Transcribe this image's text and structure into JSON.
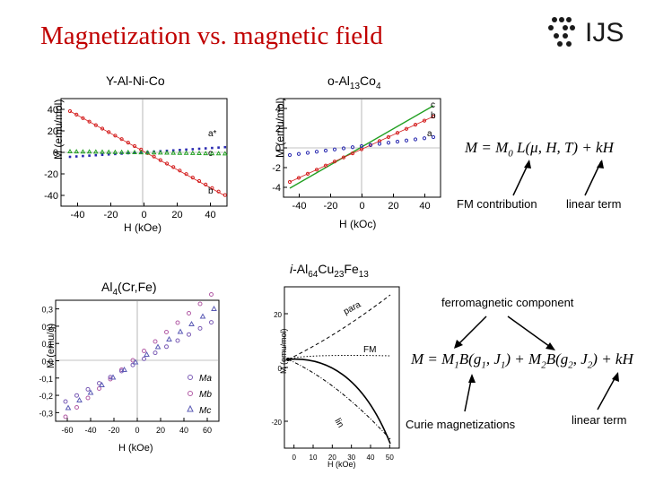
{
  "title": "Magnetization vs. magnetic field",
  "logo": {
    "text": "IJS"
  },
  "panels": {
    "ya": {
      "label": "Y-Al-Ni-Co",
      "ylabel": "M (emu/mol)",
      "xlabel": "H (kOe)",
      "xticks": [
        "-40",
        "-20",
        "0",
        "20",
        "40"
      ],
      "yticks": [
        "40",
        "20",
        "0",
        "-20",
        "-40"
      ],
      "curves": [
        "a*",
        "c",
        "b"
      ]
    },
    "oal": {
      "label": "o-Al13Co4",
      "ylabel": "M (emu/mol)",
      "xlabel": "H (kOc)",
      "xticks": [
        "-40",
        "-20",
        "0",
        "20",
        "40"
      ],
      "yticks": [
        "4",
        "2",
        "0",
        "-2",
        "-4"
      ],
      "curves": [
        "c",
        "b",
        "a"
      ]
    },
    "al4": {
      "label": "Al4(Cr,Fe)",
      "ylabel": "M (emu/g)",
      "xlabel": "H (kOe)",
      "xticks": [
        "-60",
        "-40",
        "-20",
        "0",
        "20",
        "40",
        "60"
      ],
      "yticks": [
        "0,3",
        "0,2",
        "0,1",
        "0,0",
        "-0,1",
        "-0,2",
        "-0,3"
      ],
      "legend": [
        "Ma",
        "Mb",
        "Mc"
      ]
    },
    "icu": {
      "label": "i-Al64Cu23Fe13",
      "ylabel": "M (emu/mol)",
      "xlabel": "H (kOe)",
      "xticks": [
        "0",
        "10",
        "20",
        "30",
        "40",
        "50"
      ],
      "yticks": [
        "20",
        "0",
        "-20"
      ],
      "curves": [
        "para",
        "FM",
        "lin"
      ]
    }
  },
  "equation1": {
    "text": "M = M0 L(μ, H, T) + kH",
    "fm_label": "FM contribution",
    "lin_label": "linear term"
  },
  "equation2": {
    "text": "M = M1 B(g1, J1) + M2 B(g2, J2) + kH",
    "ferro_label": "ferromagnetic component",
    "curie_label": "Curie magnetizations",
    "lin_label": "linear term"
  },
  "colors": {
    "title": "#c00000",
    "red": "#d42020",
    "green": "#22a022",
    "blue": "#2a2ab0"
  }
}
